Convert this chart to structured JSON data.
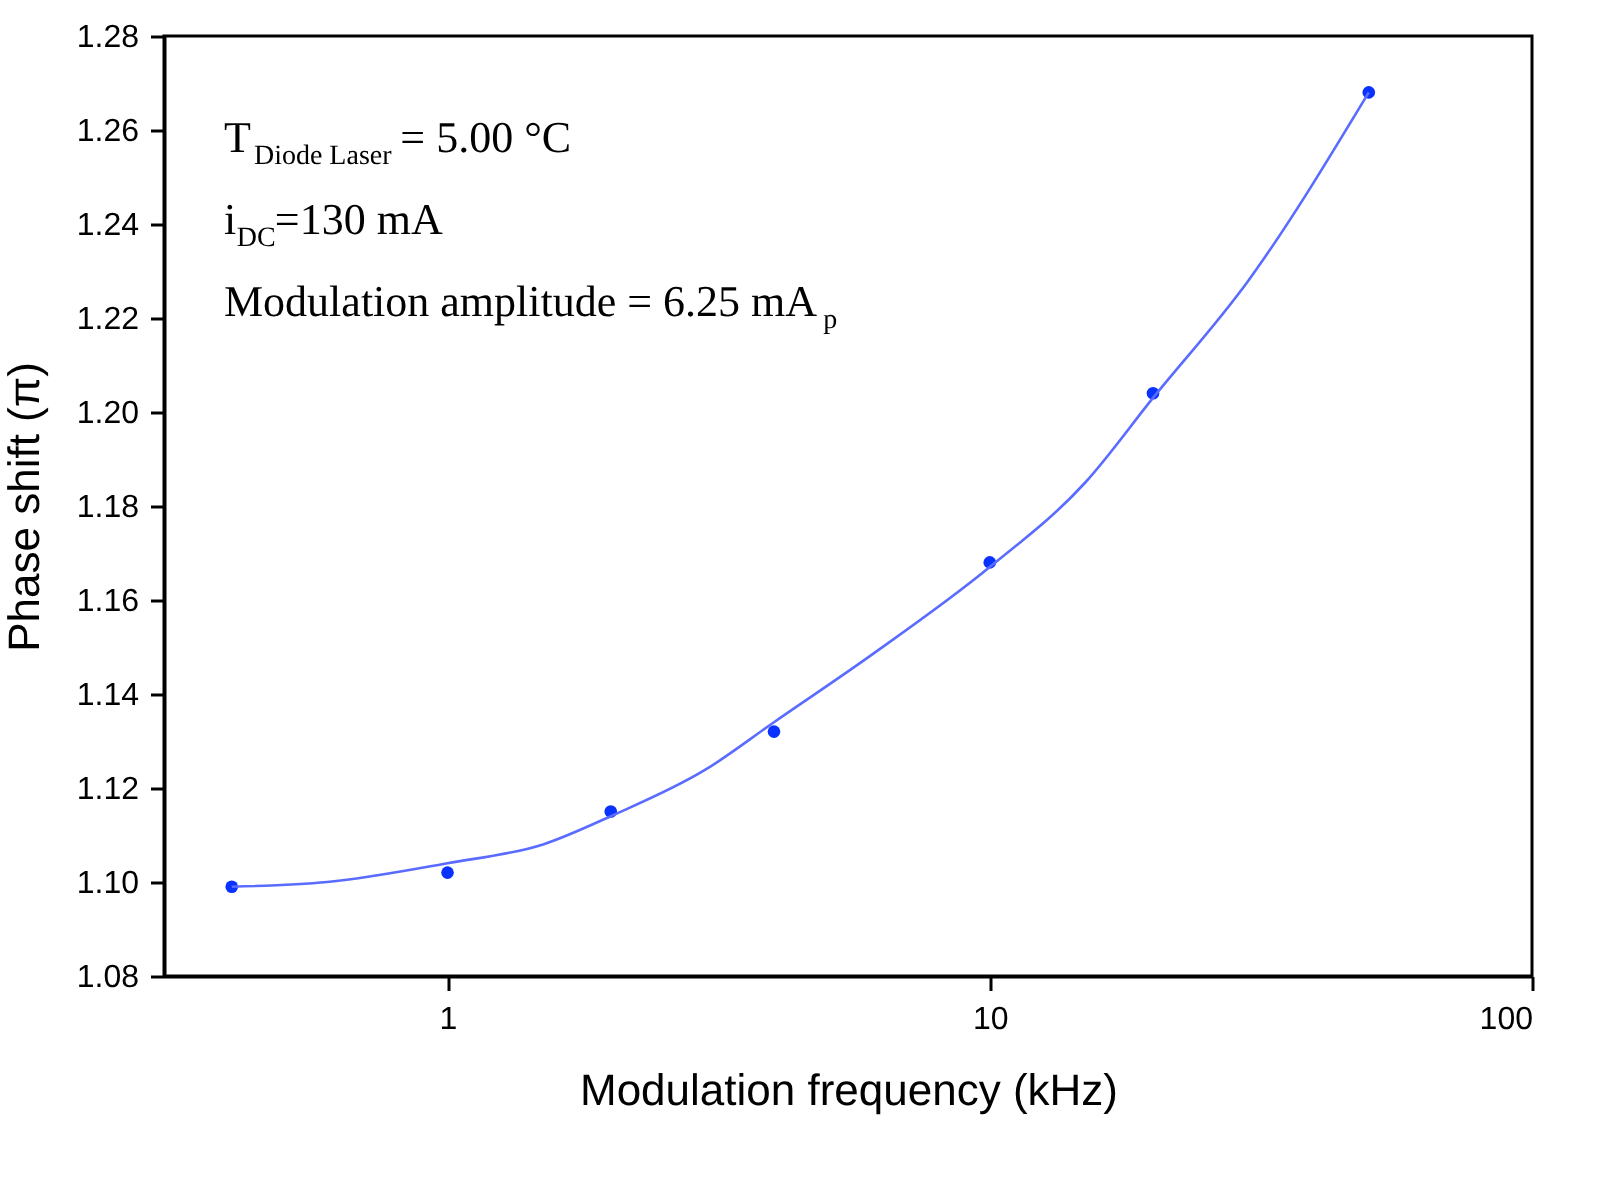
{
  "chart_data": {
    "type": "scatter",
    "xlabel": "Modulation frequency (kHz)",
    "ylabel": "Phase shift (π)",
    "log": "x",
    "xlim": [
      0.3,
      100
    ],
    "xticks": [
      1,
      10,
      100
    ],
    "ylim": [
      1.08,
      1.28
    ],
    "yticks": [
      1.08,
      {
        "value": 1.1,
        "label": "1.10"
      },
      1.12,
      1.14,
      1.16,
      1.18,
      {
        "value": 1.2,
        "label": "1.20"
      },
      1.22,
      1.24,
      1.26,
      1.28
    ],
    "grid": false,
    "annotations": [
      "T$_{Diode Laser}$ = 5.00 °C",
      "i$_{DC}$=130 mA",
      "Modulation amplitude = 6.25 mA$_{p}$"
    ],
    "series": [
      {
        "color": "#0a32ff",
        "marker": "circle",
        "x": [
          0.4,
          1,
          2,
          4,
          10,
          20,
          50
        ],
        "values": [
          1.099,
          1.102,
          1.115,
          1.132,
          1.168,
          1.204,
          1.268
        ]
      },
      {
        "type": "line",
        "color": "#5a6cff",
        "line_style": "solid",
        "x": [
          0.4,
          0.6,
          1,
          1.5,
          2,
          3,
          4,
          6,
          10,
          15,
          20,
          30,
          50
        ],
        "values": [
          1.099,
          1.1,
          1.104,
          1.108,
          1.114,
          1.124,
          1.134,
          1.148,
          1.167,
          1.185,
          1.203,
          1.228,
          1.268
        ]
      }
    ]
  }
}
